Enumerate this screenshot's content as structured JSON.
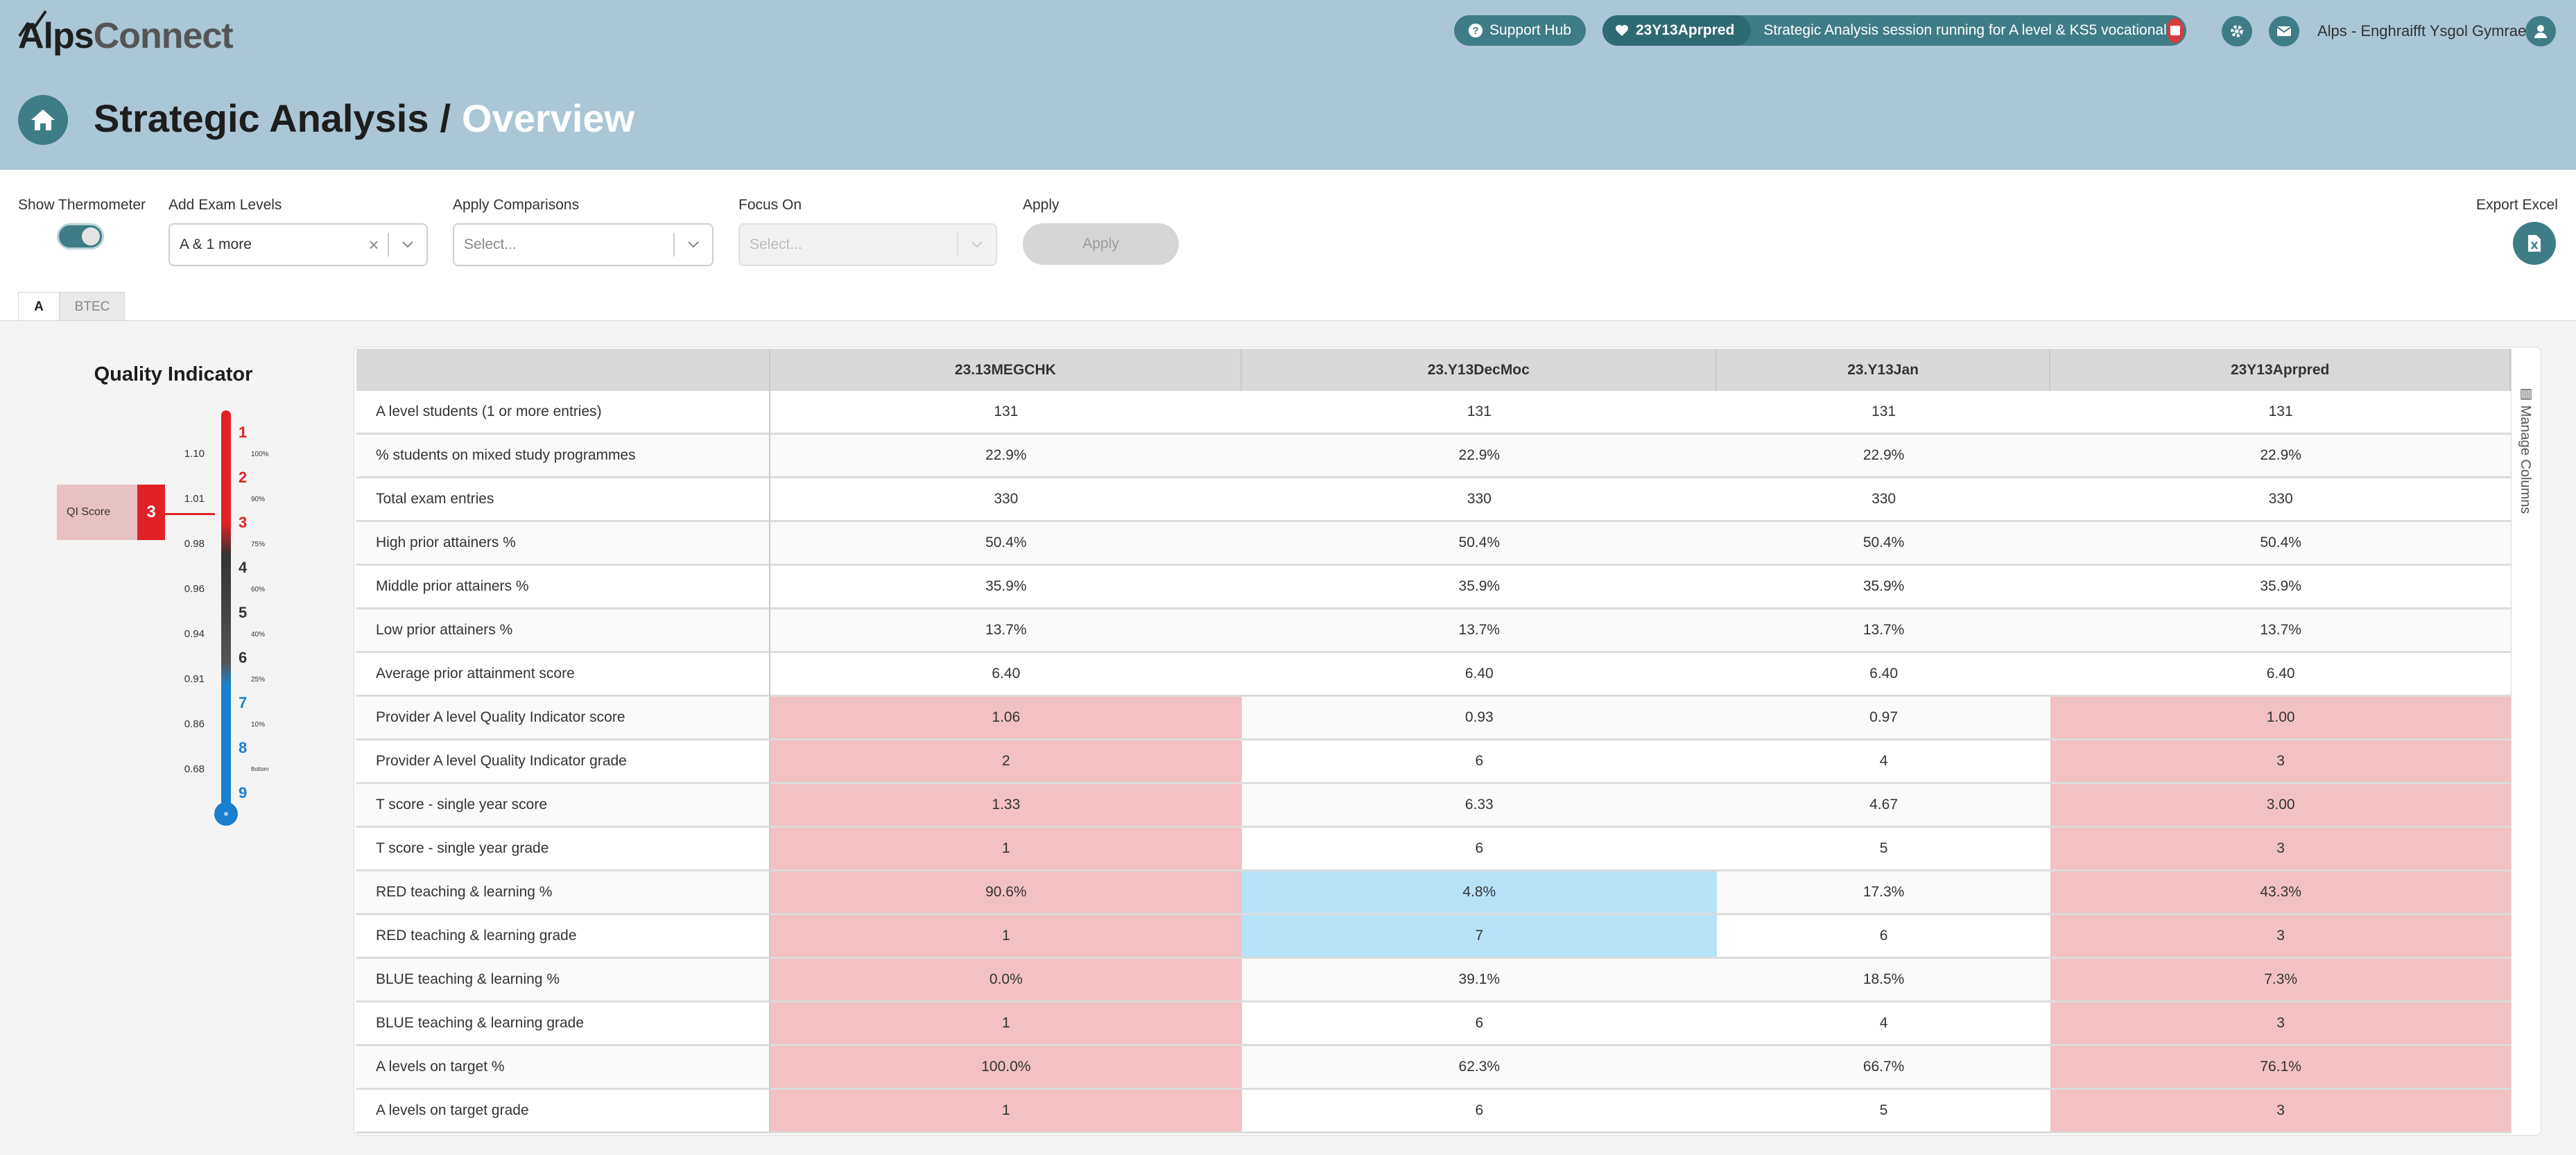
{
  "app": {
    "logo_part1": "Alps",
    "logo_part2": "Connect"
  },
  "header": {
    "support_label": "Support Hub",
    "session_code": "23Y13Aprpred",
    "session_message": "Strategic Analysis session running for A level & KS5 vocational",
    "user_name": "Alps - Enghraifft Ysgol Gymraeg",
    "title_main": "Strategic Analysis",
    "title_sep": "/",
    "title_sub": "Overview"
  },
  "toolbar": {
    "show_thermometer_label": "Show Thermometer",
    "show_thermometer_on": true,
    "exam_levels_label": "Add Exam Levels",
    "exam_levels_value": "A & 1 more",
    "comparisons_label": "Apply Comparisons",
    "comparisons_placeholder": "Select...",
    "focus_label": "Focus On",
    "focus_placeholder": "Select...",
    "apply_label": "Apply",
    "apply_button": "Apply",
    "export_label": "Export Excel"
  },
  "tabs": [
    "A",
    "BTEC"
  ],
  "thermometer": {
    "title": "Quality Indicator",
    "score_label": "QI Score",
    "score_value": "3",
    "scale_values": [
      "1.10",
      "1.01",
      "0.98",
      "0.96",
      "0.94",
      "0.91",
      "0.86",
      "0.68"
    ],
    "scale_pcts": [
      "100%",
      "90%",
      "75%",
      "60%",
      "40%",
      "25%",
      "10%",
      "Bottom"
    ],
    "grades": [
      "1",
      "2",
      "3",
      "4",
      "5",
      "6",
      "7",
      "8",
      "9"
    ],
    "colors": {
      "red": "#e02128",
      "black": "#333333",
      "blue": "#1a7fcf"
    }
  },
  "table": {
    "columns": [
      "23.13MEGCHK",
      "23.Y13DecMoc",
      "23.Y13Jan",
      "23Y13Aprpred"
    ],
    "rows": [
      {
        "label": "A level students (1 or more entries)",
        "values": [
          "131",
          "131",
          "131",
          "131"
        ],
        "hl": [
          "",
          "",
          "",
          ""
        ]
      },
      {
        "label": "% students on mixed study programmes",
        "values": [
          "22.9%",
          "22.9%",
          "22.9%",
          "22.9%"
        ],
        "hl": [
          "",
          "",
          "",
          ""
        ]
      },
      {
        "label": "Total exam entries",
        "values": [
          "330",
          "330",
          "330",
          "330"
        ],
        "hl": [
          "",
          "",
          "",
          ""
        ]
      },
      {
        "label": "High prior attainers %",
        "values": [
          "50.4%",
          "50.4%",
          "50.4%",
          "50.4%"
        ],
        "hl": [
          "",
          "",
          "",
          ""
        ]
      },
      {
        "label": "Middle prior attainers %",
        "values": [
          "35.9%",
          "35.9%",
          "35.9%",
          "35.9%"
        ],
        "hl": [
          "",
          "",
          "",
          ""
        ]
      },
      {
        "label": "Low prior attainers %",
        "values": [
          "13.7%",
          "13.7%",
          "13.7%",
          "13.7%"
        ],
        "hl": [
          "",
          "",
          "",
          ""
        ]
      },
      {
        "label": "Average prior attainment score",
        "values": [
          "6.40",
          "6.40",
          "6.40",
          "6.40"
        ],
        "hl": [
          "",
          "",
          "",
          ""
        ]
      },
      {
        "label": "Provider A level Quality Indicator score",
        "values": [
          "1.06",
          "0.93",
          "0.97",
          "1.00"
        ],
        "hl": [
          "red",
          "",
          "",
          "red"
        ]
      },
      {
        "label": "Provider A level Quality Indicator grade",
        "values": [
          "2",
          "6",
          "4",
          "3"
        ],
        "hl": [
          "red",
          "",
          "",
          "red"
        ]
      },
      {
        "label": "T score - single year score",
        "values": [
          "1.33",
          "6.33",
          "4.67",
          "3.00"
        ],
        "hl": [
          "red",
          "",
          "",
          "red"
        ]
      },
      {
        "label": "T score - single year grade",
        "values": [
          "1",
          "6",
          "5",
          "3"
        ],
        "hl": [
          "red",
          "",
          "",
          "red"
        ]
      },
      {
        "label": "RED teaching & learning %",
        "values": [
          "90.6%",
          "4.8%",
          "17.3%",
          "43.3%"
        ],
        "hl": [
          "red",
          "blue",
          "",
          "red"
        ]
      },
      {
        "label": "RED teaching & learning grade",
        "values": [
          "1",
          "7",
          "6",
          "3"
        ],
        "hl": [
          "red",
          "blue",
          "",
          "red"
        ]
      },
      {
        "label": "BLUE teaching & learning %",
        "values": [
          "0.0%",
          "39.1%",
          "18.5%",
          "7.3%"
        ],
        "hl": [
          "red",
          "",
          "",
          "red"
        ]
      },
      {
        "label": "BLUE teaching & learning grade",
        "values": [
          "1",
          "6",
          "4",
          "3"
        ],
        "hl": [
          "red",
          "",
          "",
          "red"
        ]
      },
      {
        "label": "A levels on target %",
        "values": [
          "100.0%",
          "62.3%",
          "66.7%",
          "76.1%"
        ],
        "hl": [
          "red",
          "",
          "",
          "red"
        ]
      },
      {
        "label": "A levels on target grade",
        "values": [
          "1",
          "6",
          "5",
          "3"
        ],
        "hl": [
          "red",
          "",
          "",
          "red"
        ]
      }
    ],
    "manage_columns_label": "Manage Columns"
  }
}
